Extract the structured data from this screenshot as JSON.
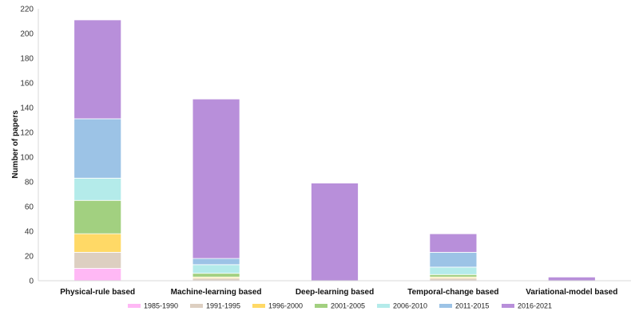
{
  "chart_data": {
    "type": "bar",
    "stacked": true,
    "title": "",
    "xlabel": "",
    "ylabel": "Number of papers",
    "ylim": [
      0,
      220
    ],
    "yticks": [
      0,
      20,
      40,
      60,
      80,
      100,
      120,
      140,
      160,
      180,
      200,
      220
    ],
    "grid": false,
    "legend_position": "bottom",
    "categories": [
      "Physical-rule based",
      "Machine-learning based",
      "Deep-learning based",
      "Temporal-change based",
      "Variational-model based"
    ],
    "series": [
      {
        "name": "1985-1990",
        "color": "#ffb8f5",
        "values": [
          10,
          0,
          0,
          0,
          0
        ]
      },
      {
        "name": "1991-1995",
        "color": "#ddcfc1",
        "values": [
          13,
          2,
          0,
          2,
          0
        ]
      },
      {
        "name": "1996-2000",
        "color": "#ffd966",
        "values": [
          15,
          1,
          0,
          1,
          0
        ]
      },
      {
        "name": "2001-2005",
        "color": "#a2d080",
        "values": [
          27,
          3,
          0,
          2,
          0
        ]
      },
      {
        "name": "2006-2010",
        "color": "#b4ebea",
        "values": [
          18,
          7,
          0,
          6,
          0
        ]
      },
      {
        "name": "2011-2015",
        "color": "#9cc3e6",
        "values": [
          48,
          5,
          0,
          12,
          0
        ]
      },
      {
        "name": "2016-2021",
        "color": "#b88fda",
        "values": [
          80,
          129,
          79,
          15,
          3
        ]
      }
    ]
  }
}
